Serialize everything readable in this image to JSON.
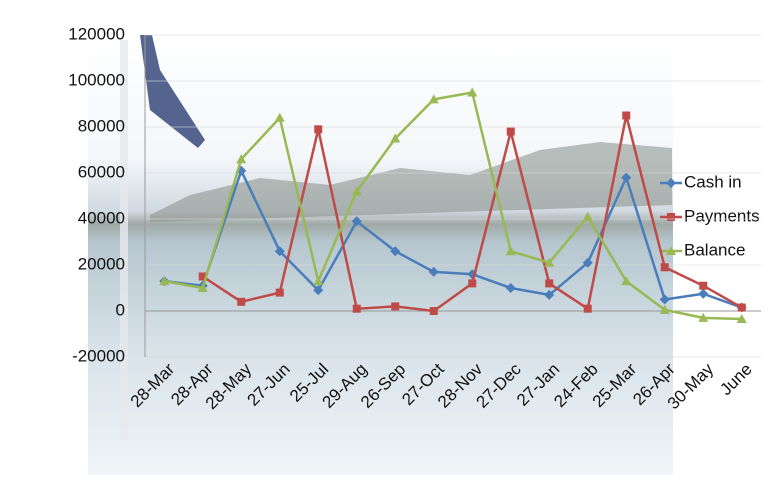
{
  "chart_data": {
    "type": "line",
    "categories": [
      "28-Mar",
      "28-Apr",
      "28-May",
      "27-Jun",
      "25-Jul",
      "29-Aug",
      "26-Sep",
      "27-Oct",
      "28-Nov",
      "27-Dec",
      "27-Jan",
      "24-Feb",
      "25-Mar",
      "26-Apr",
      "30-May",
      "June"
    ],
    "series": [
      {
        "name": "Cash in",
        "color": "#4a7ebb",
        "marker": "diamond",
        "values": [
          13000,
          11000,
          61000,
          26000,
          9000,
          39000,
          26000,
          17000,
          16000,
          10000,
          7000,
          21000,
          58000,
          5000,
          7500,
          1500
        ]
      },
      {
        "name": "Payments",
        "color": "#be4b48",
        "marker": "square",
        "values": [
          null,
          15000,
          4000,
          8000,
          79000,
          1000,
          2000,
          0,
          12000,
          78000,
          12000,
          1000,
          85000,
          19000,
          11000,
          1500
        ]
      },
      {
        "name": "Balance",
        "color": "#98b954",
        "marker": "triangle",
        "values": [
          13000,
          10000,
          66000,
          84000,
          13000,
          52000,
          75000,
          92000,
          95000,
          26000,
          21000,
          41000,
          13000,
          500,
          -3000,
          -3500
        ]
      }
    ],
    "ylim": [
      -20000,
      120000
    ],
    "yticks": [
      -20000,
      0,
      20000,
      40000,
      60000,
      80000,
      100000,
      120000
    ],
    "grid": true,
    "legend": "right"
  }
}
